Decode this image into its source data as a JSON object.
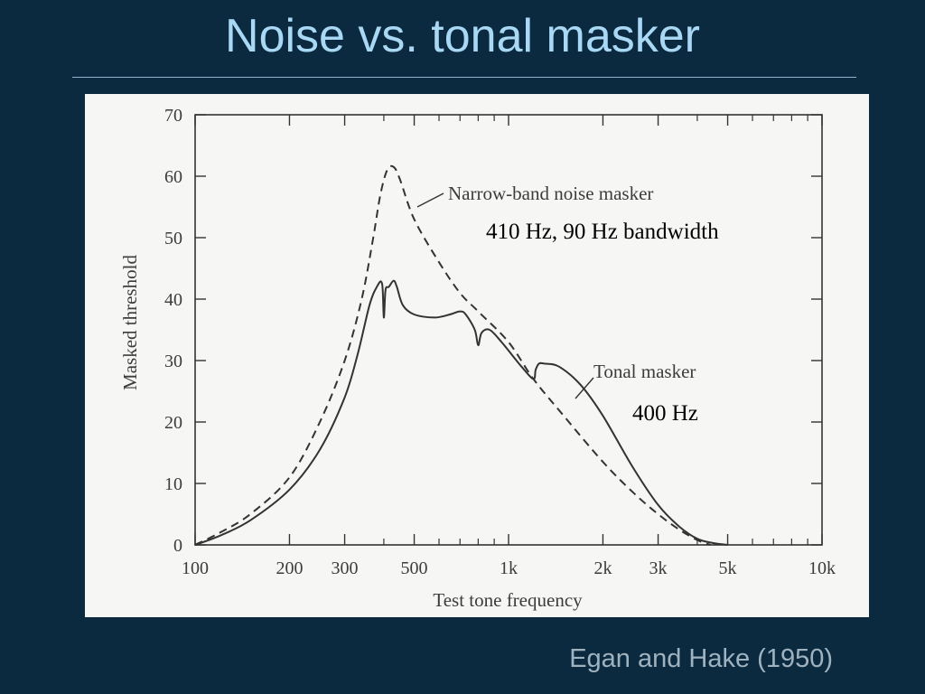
{
  "slide": {
    "title": "Noise vs. tonal masker",
    "citation": "Egan and Hake (1950)"
  },
  "colors": {
    "background": "#0b2a3f",
    "title": "#a9d8f5",
    "citation": "#9fb2c0",
    "panel": "#f6f6f4",
    "curve": "#333333"
  },
  "chart_data": {
    "type": "line",
    "xscale": "log",
    "xlabel": "Test tone frequency",
    "ylabel": "Masked threshold",
    "xlim": [
      100,
      10000
    ],
    "ylim": [
      0,
      70
    ],
    "xticks": [
      {
        "value": 100,
        "label": "100"
      },
      {
        "value": 200,
        "label": "200"
      },
      {
        "value": 300,
        "label": "300"
      },
      {
        "value": 500,
        "label": "500"
      },
      {
        "value": 1000,
        "label": "1k"
      },
      {
        "value": 2000,
        "label": "2k"
      },
      {
        "value": 3000,
        "label": "3k"
      },
      {
        "value": 5000,
        "label": "5k"
      },
      {
        "value": 10000,
        "label": "10k"
      }
    ],
    "yticks": [
      0,
      10,
      20,
      30,
      40,
      50,
      60,
      70
    ],
    "grid": false,
    "series": [
      {
        "name": "Narrow-band noise masker",
        "style": "dashed",
        "x": [
          100,
          120,
          150,
          200,
          250,
          300,
          340,
          370,
          390,
          410,
          430,
          450,
          500,
          600,
          700,
          800,
          1000,
          1200,
          1500,
          2000,
          2500,
          3000,
          3500,
          4000,
          4400
        ],
        "y": [
          0,
          2,
          5,
          11,
          20,
          30,
          40,
          50,
          57,
          61,
          61.5,
          59.5,
          53,
          46,
          41,
          38,
          33,
          27,
          21,
          13.5,
          8.5,
          5,
          2.5,
          0.8,
          0
        ]
      },
      {
        "name": "Tonal masker",
        "style": "solid",
        "x": [
          100,
          120,
          150,
          200,
          250,
          300,
          330,
          360,
          380,
          395,
          400,
          405,
          415,
          430,
          440,
          460,
          500,
          580,
          650,
          700,
          730,
          780,
          800,
          820,
          870,
          950,
          1100,
          1200,
          1220,
          1250,
          1300,
          1450,
          1700,
          2000,
          2500,
          3000,
          3500,
          4000,
          4500,
          5000
        ],
        "y": [
          0,
          1.5,
          4,
          9,
          15.5,
          24,
          31,
          39,
          42,
          42.5,
          37,
          41.5,
          42,
          43,
          42,
          39,
          37.5,
          37,
          37.5,
          38,
          37.5,
          35,
          32.5,
          34.5,
          35,
          33,
          29,
          27,
          28.5,
          29.5,
          29.5,
          29,
          26,
          21,
          12.5,
          6.5,
          3,
          1,
          0.3,
          0
        ]
      }
    ],
    "annotations": [
      {
        "text": "Narrow-band noise masker",
        "points_to": "Narrow-band noise masker"
      },
      {
        "text": "410 Hz, 90 Hz bandwidth"
      },
      {
        "text": "Tonal masker",
        "points_to": "Tonal masker"
      },
      {
        "text": "400 Hz"
      }
    ]
  }
}
